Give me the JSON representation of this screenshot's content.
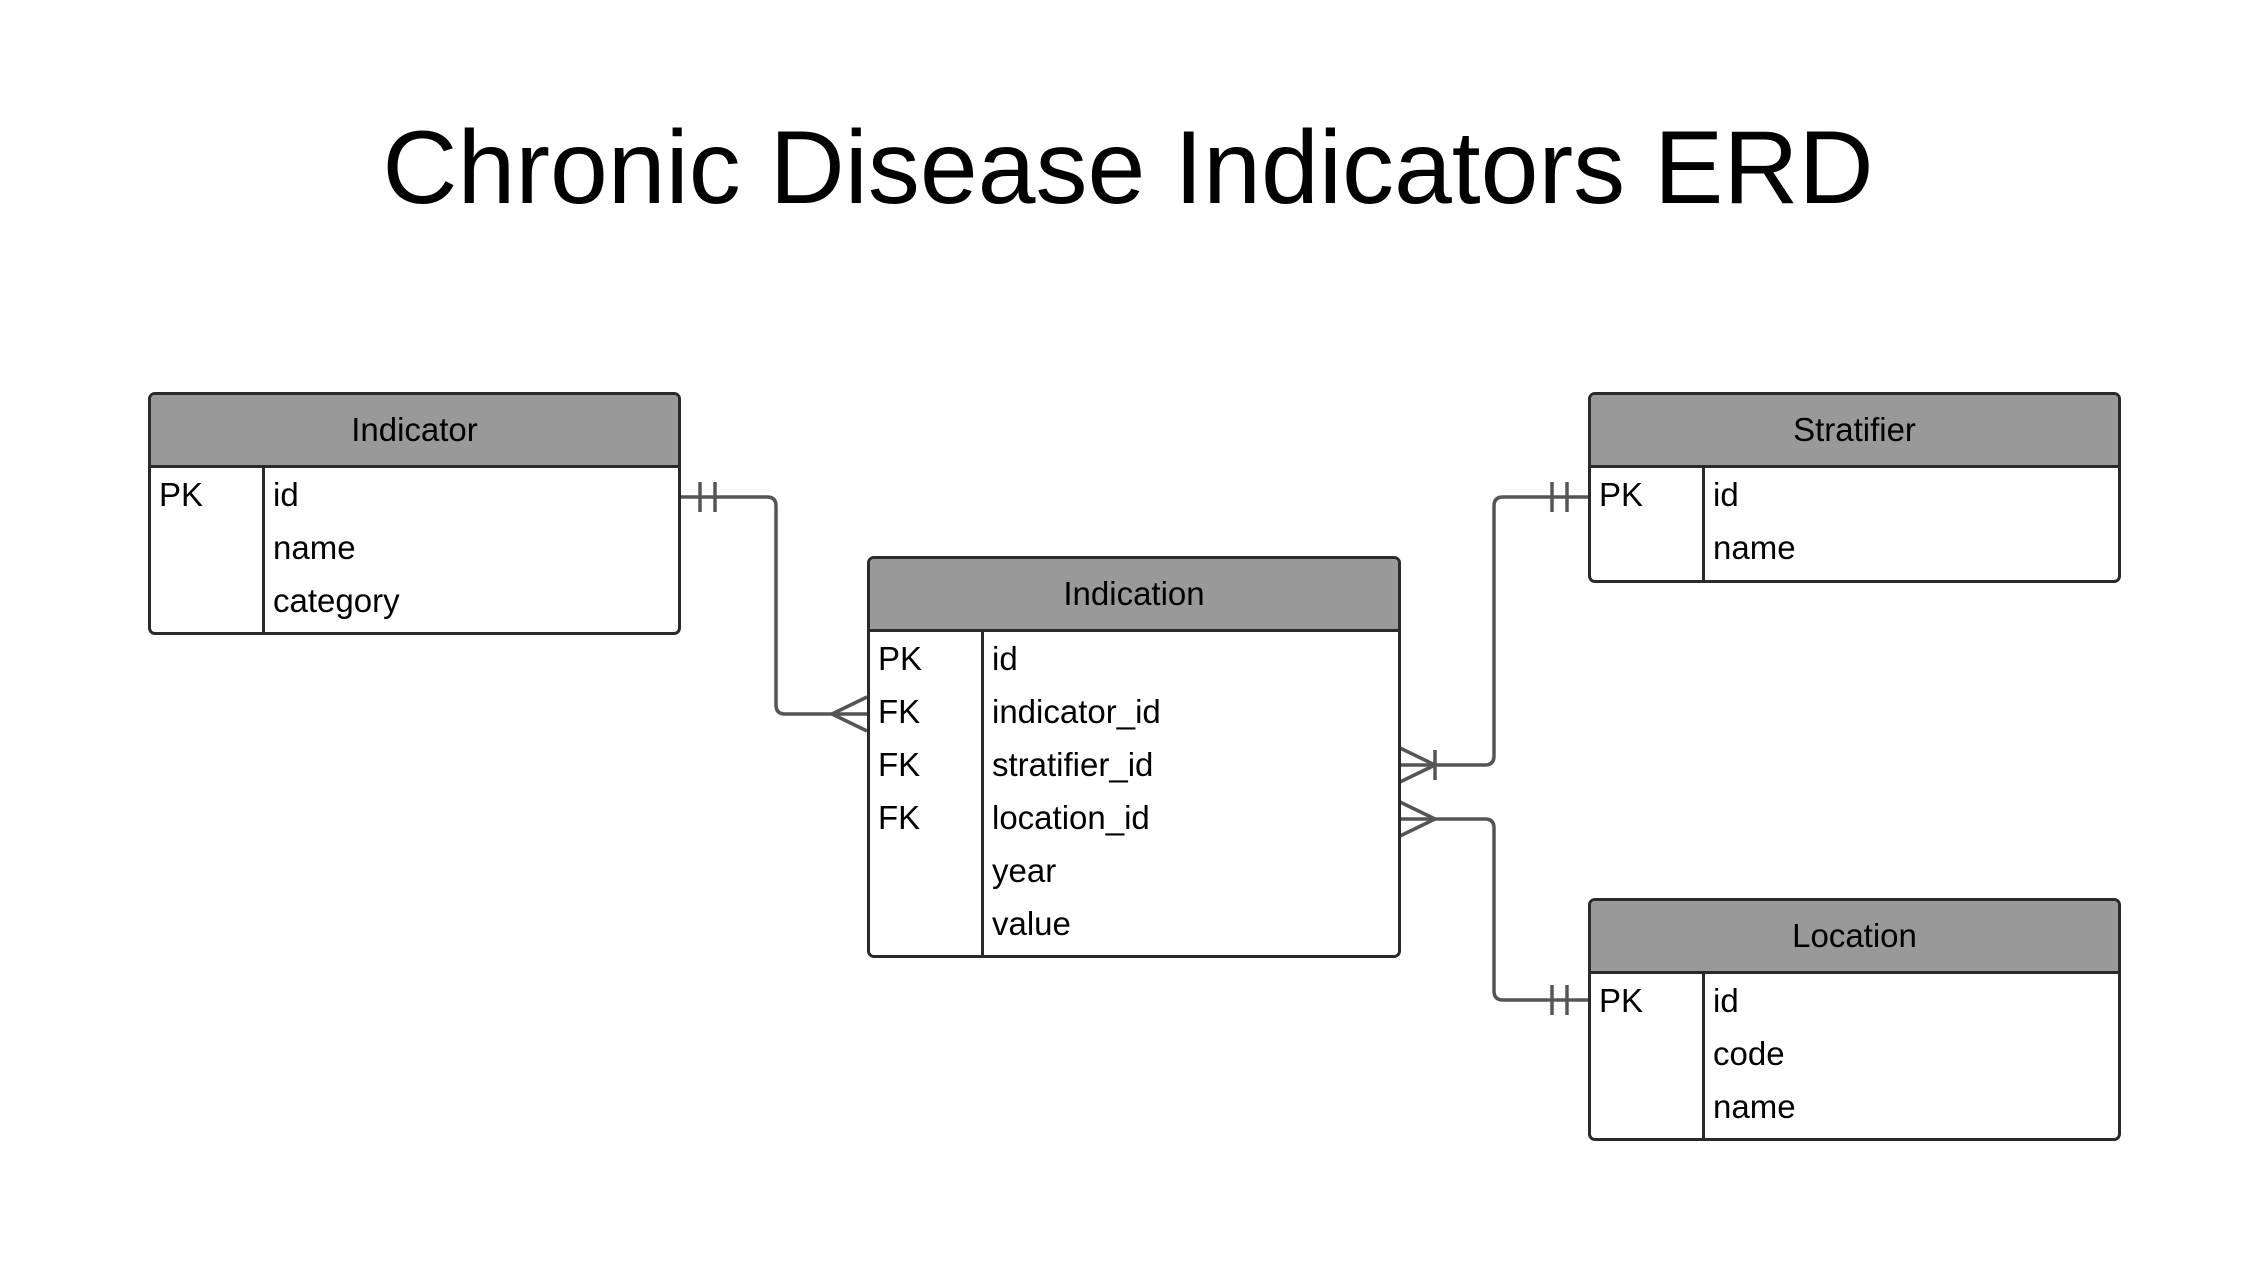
{
  "title": "Chronic Disease Indicators ERD",
  "colors": {
    "header_fill": "#999999",
    "border": "#2a2a2a",
    "connector": "#555555"
  },
  "entities": {
    "indicator": {
      "name": "Indicator",
      "attributes": [
        {
          "key": "PK",
          "name": "id"
        },
        {
          "key": "",
          "name": "name"
        },
        {
          "key": "",
          "name": "category"
        }
      ]
    },
    "indication": {
      "name": "Indication",
      "attributes": [
        {
          "key": "PK",
          "name": "id"
        },
        {
          "key": "FK",
          "name": "indicator_id"
        },
        {
          "key": "FK",
          "name": "stratifier_id"
        },
        {
          "key": "FK",
          "name": "location_id"
        },
        {
          "key": "",
          "name": "year"
        },
        {
          "key": "",
          "name": "value"
        }
      ]
    },
    "stratifier": {
      "name": "Stratifier",
      "attributes": [
        {
          "key": "PK",
          "name": "id"
        },
        {
          "key": "",
          "name": "name"
        }
      ]
    },
    "location": {
      "name": "Location",
      "attributes": [
        {
          "key": "PK",
          "name": "id"
        },
        {
          "key": "",
          "name": "code"
        },
        {
          "key": "",
          "name": "name"
        }
      ]
    }
  },
  "relationships": [
    {
      "from": "Indicator",
      "from_cardinality": "exactly-one",
      "to": "Indication",
      "to_cardinality": "many"
    },
    {
      "from": "Stratifier",
      "from_cardinality": "exactly-one",
      "to": "Indication",
      "to_cardinality": "one-or-many"
    },
    {
      "from": "Location",
      "from_cardinality": "exactly-one",
      "to": "Indication",
      "to_cardinality": "many"
    }
  ]
}
